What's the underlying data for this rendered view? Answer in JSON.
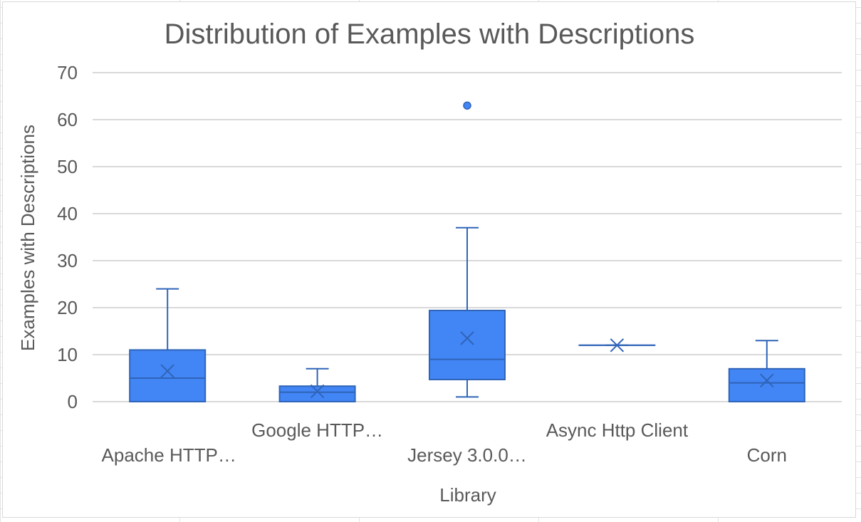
{
  "chart_data": {
    "type": "box",
    "title": "Distribution of Examples with Descriptions",
    "xlabel": "Library",
    "ylabel": "Examples with Descriptions",
    "ylim": [
      0,
      70
    ],
    "yticks": [
      0,
      10,
      20,
      30,
      40,
      50,
      60,
      70
    ],
    "grid": true,
    "legend": "none",
    "color": "#4285F4",
    "categories": [
      "Apache HTTP…",
      "Google HTTP…",
      "Jersey 3.0.0…",
      "Async Http Client",
      "Corn"
    ],
    "boxes": [
      {
        "category": "Apache HTTP…",
        "min": 0,
        "q1": 0,
        "median": 5,
        "q3": 11,
        "max": 24,
        "mean": 6.5,
        "outliers": []
      },
      {
        "category": "Google HTTP…",
        "min": 0,
        "q1": 0,
        "median": 2,
        "q3": 3.3,
        "max": 7,
        "mean": 2.2,
        "outliers": []
      },
      {
        "category": "Jersey 3.0.0…",
        "min": 1,
        "q1": 4.7,
        "median": 9,
        "q3": 19.4,
        "max": 37,
        "mean": 13.5,
        "outliers": [
          63
        ]
      },
      {
        "category": "Async Http Client",
        "min": 12,
        "q1": 12,
        "median": 12,
        "q3": 12,
        "max": 12,
        "mean": 12,
        "outliers": []
      },
      {
        "category": "Corn",
        "min": 0,
        "q1": 0,
        "median": 4,
        "q3": 7,
        "max": 13,
        "mean": 4.5,
        "outliers": []
      }
    ]
  }
}
